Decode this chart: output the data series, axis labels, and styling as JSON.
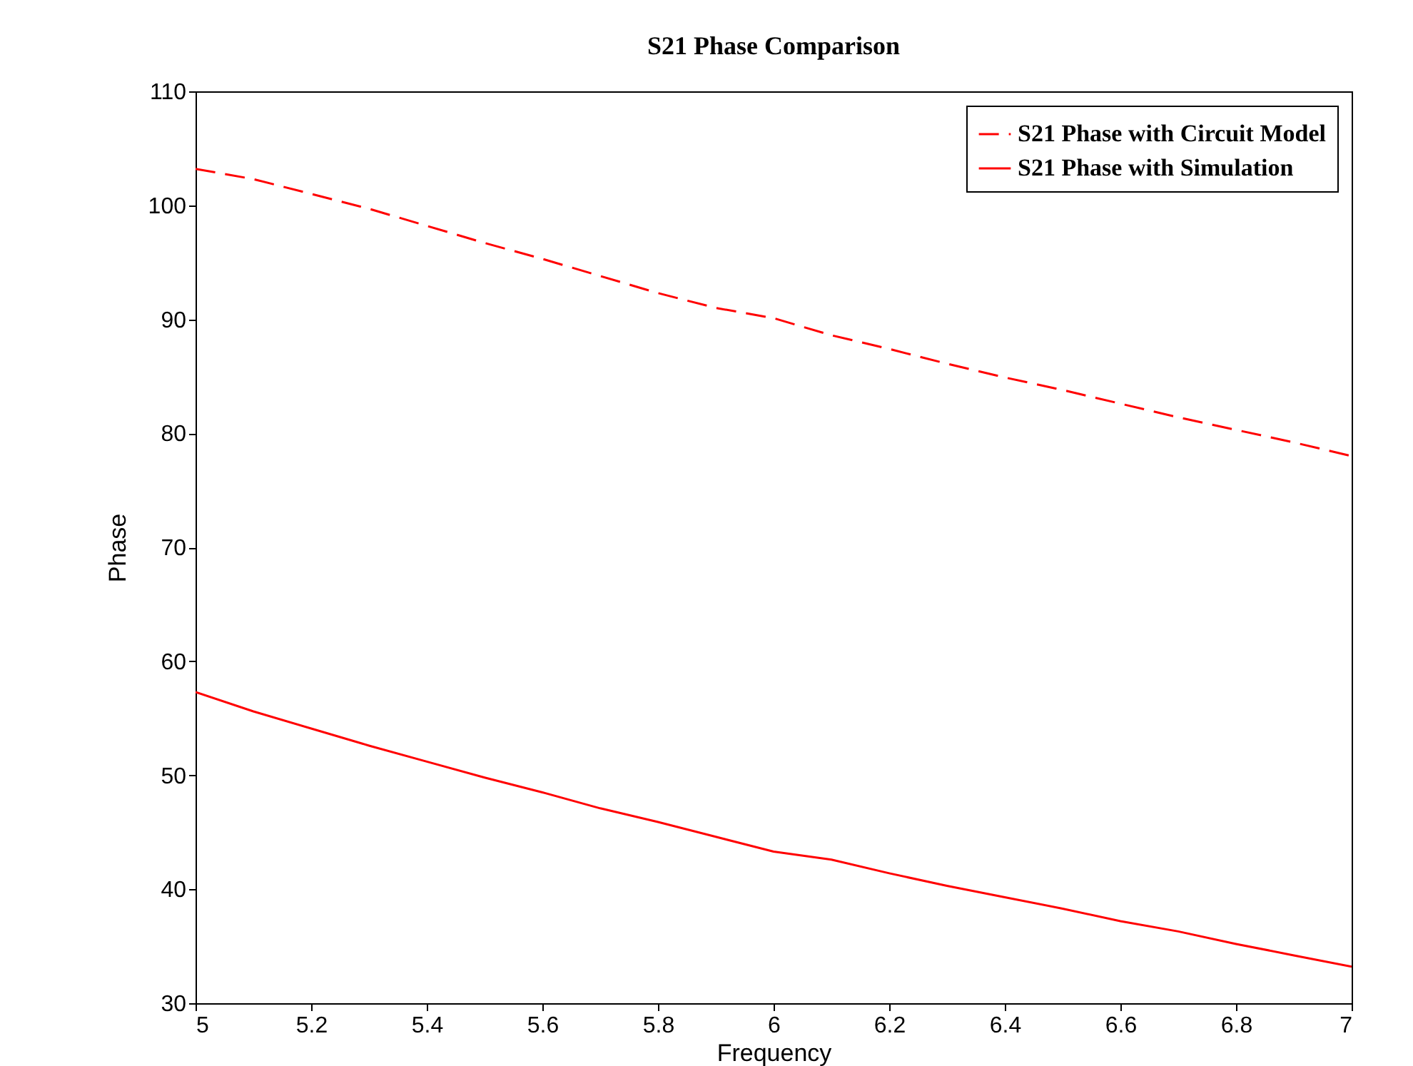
{
  "chart_data": {
    "type": "line",
    "title": "S21 Phase Comparison",
    "xlabel": "Frequency",
    "ylabel": "Phase",
    "x": [
      5,
      5.1,
      5.2,
      5.3,
      5.4,
      5.5,
      5.6,
      5.7,
      5.8,
      5.9,
      6,
      6.1,
      6.2,
      6.3,
      6.4,
      6.5,
      6.6,
      6.7,
      6.8,
      6.9,
      7
    ],
    "series": [
      {
        "name": "S21 Phase with Circuit Model",
        "color": "#ff0000",
        "line_style": "dashed",
        "values": [
          103.2,
          102.3,
          101,
          99.7,
          98.2,
          96.7,
          95.3,
          93.8,
          92.3,
          91,
          90.1,
          88.6,
          87.4,
          86.1,
          84.9,
          83.8,
          82.6,
          81.4,
          80.3,
          79.2,
          78
        ]
      },
      {
        "name": "S21 Phase with Simulation",
        "color": "#ff0000",
        "line_style": "solid",
        "values": [
          57.3,
          55.6,
          54.1,
          52.6,
          51.2,
          49.8,
          48.5,
          47.1,
          45.9,
          44.6,
          43.3,
          42.6,
          41.4,
          40.3,
          39.3,
          38.3,
          37.2,
          36.3,
          35.2,
          34.2,
          33.2
        ]
      }
    ],
    "xlim": [
      5,
      7
    ],
    "xticks": [
      5,
      5.2,
      5.4,
      5.6,
      5.8,
      6,
      6.2,
      6.4,
      6.6,
      6.8,
      7
    ],
    "ylim": [
      30,
      110
    ],
    "yticks": [
      30,
      40,
      50,
      60,
      70,
      80,
      90,
      100,
      110
    ],
    "grid": false,
    "legend": "top right",
    "marker": "none"
  }
}
